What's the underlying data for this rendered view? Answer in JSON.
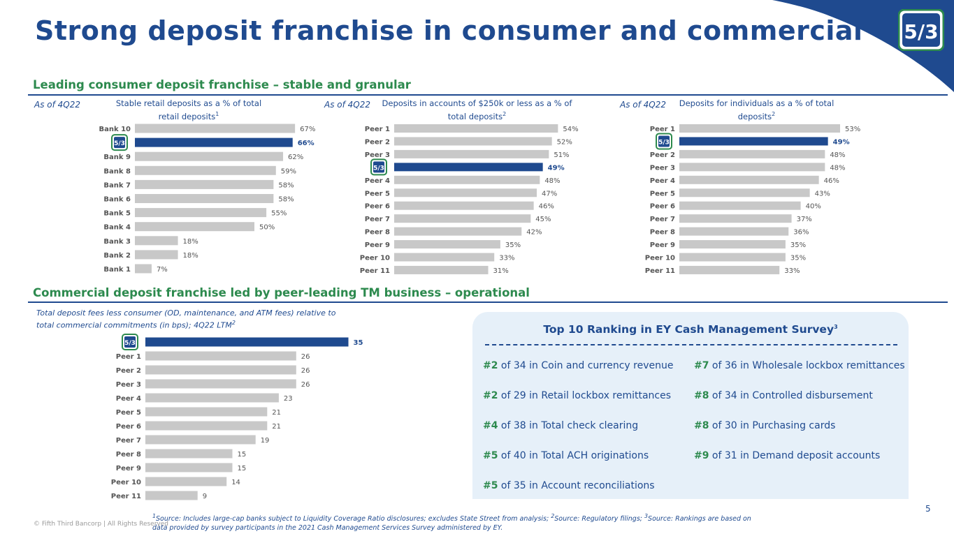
{
  "title": "Strong deposit franchise in consumer and commercial",
  "colors": {
    "brand_blue": "#1f4a8f",
    "green": "#2d8a4e",
    "bar_gray": "#c8c8c8",
    "highlight": "#1f4a8f"
  },
  "section1": {
    "title": "Leading consumer deposit franchise – stable and granular"
  },
  "section2": {
    "title": "Commercial deposit franchise led by peer-leading TM business – operational"
  },
  "chart_data": [
    {
      "type": "bar",
      "orientation": "horizontal",
      "as_of": "As of 4Q22",
      "title": "Stable retail deposits as a % of total retail deposits",
      "title_sup": "1",
      "categories": [
        "Bank 10",
        "Fifth Third",
        "Bank 9",
        "Bank 8",
        "Bank 7",
        "Bank 6",
        "Bank 5",
        "Bank 4",
        "Bank 3",
        "Bank 2",
        "Bank 1"
      ],
      "values": [
        67,
        66,
        62,
        59,
        58,
        58,
        55,
        50,
        18,
        18,
        7
      ],
      "labels": [
        "67%",
        "66%",
        "62%",
        "59%",
        "58%",
        "58%",
        "55%",
        "50%",
        "18%",
        "18%",
        "7%"
      ],
      "highlight_index": 1,
      "xlim": [
        0,
        100
      ]
    },
    {
      "type": "bar",
      "orientation": "horizontal",
      "as_of": "As of 4Q22",
      "title": "Deposits in accounts of $250k or less as a % of total deposits",
      "title_sup": "2",
      "categories": [
        "Peer 1",
        "Peer 2",
        "Peer 3",
        "Fifth Third",
        "Peer 4",
        "Peer 5",
        "Peer 6",
        "Peer 7",
        "Peer 8",
        "Peer 9",
        "Peer 10",
        "Peer 11"
      ],
      "values": [
        54,
        52,
        51,
        49,
        48,
        47,
        46,
        45,
        42,
        35,
        33,
        31
      ],
      "labels": [
        "54%",
        "52%",
        "51%",
        "49%",
        "48%",
        "47%",
        "46%",
        "45%",
        "42%",
        "35%",
        "33%",
        "31%"
      ],
      "highlight_index": 3,
      "xlim": [
        0,
        100
      ]
    },
    {
      "type": "bar",
      "orientation": "horizontal",
      "as_of": "As of 4Q22",
      "title": "Deposits for individuals as a % of total deposits",
      "title_sup": "2",
      "categories": [
        "Peer 1",
        "Fifth Third",
        "Peer 2",
        "Peer 3",
        "Peer 4",
        "Peer 5",
        "Peer 6",
        "Peer 7",
        "Peer 8",
        "Peer 9",
        "Peer 10",
        "Peer 11"
      ],
      "values": [
        53,
        49,
        48,
        48,
        46,
        43,
        40,
        37,
        36,
        35,
        35,
        33
      ],
      "labels": [
        "53%",
        "49%",
        "48%",
        "48%",
        "46%",
        "43%",
        "40%",
        "37%",
        "36%",
        "35%",
        "35%",
        "33%"
      ],
      "highlight_index": 1,
      "xlim": [
        0,
        100
      ]
    },
    {
      "type": "bar",
      "orientation": "horizontal",
      "title": "Total deposit fees less consumer (OD, maintenance, and ATM fees) relative to total commercial commitments (in bps); 4Q22 LTM",
      "title_sup": "2",
      "categories": [
        "Fifth Third",
        "Peer 1",
        "Peer 2",
        "Peer 3",
        "Peer 4",
        "Peer 5",
        "Peer 6",
        "Peer 7",
        "Peer 8",
        "Peer 9",
        "Peer 10",
        "Peer 11"
      ],
      "values": [
        35,
        26,
        26,
        26,
        23,
        21,
        21,
        19,
        15,
        15,
        14,
        9
      ],
      "labels": [
        "35",
        "26",
        "26",
        "26",
        "23",
        "21",
        "21",
        "19",
        "15",
        "15",
        "14",
        "9"
      ],
      "highlight_index": 0,
      "xlim": [
        0,
        40
      ]
    }
  ],
  "ey": {
    "title": "Top 10 Ranking in EY Cash Management Survey",
    "title_sup": "3",
    "left": [
      {
        "rank": "#2",
        "text": " of 34 in Coin and currency revenue"
      },
      {
        "rank": "#2",
        "text": " of 29 in Retail lockbox remittances"
      },
      {
        "rank": "#4",
        "text": " of 38 in Total check clearing"
      },
      {
        "rank": "#5",
        "text": " of 40 in Total ACH originations"
      },
      {
        "rank": "#5",
        "text": " of 35 in Account reconciliations"
      }
    ],
    "right": [
      {
        "rank": "#7",
        "text": " of 36 in Wholesale lockbox remittances"
      },
      {
        "rank": "#8",
        "text": " of 34 in Controlled disbursement"
      },
      {
        "rank": "#8",
        "text": " of 30 in Purchasing cards"
      },
      {
        "rank": "#9",
        "text": " of 31 in Demand deposit accounts"
      }
    ]
  },
  "footer": {
    "page": "5",
    "copyright": "© Fifth Third Bancorp | All Rights Reserved",
    "footnote": "1Source: Includes large-cap banks subject to Liquidity Coverage Ratio disclosures; excludes State Street from analysis; 2Source: Regulatory filings; 3Source: Rankings are based on data provided by survey participants in the 2021 Cash Management Services Survey administered by EY."
  }
}
